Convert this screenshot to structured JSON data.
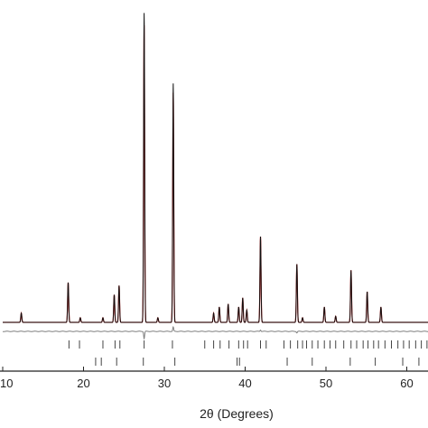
{
  "chart_data": {
    "type": "line",
    "title": "",
    "xlabel": "2θ (Degrees)",
    "ylabel": "",
    "xlim": [
      10,
      63
    ],
    "ylim": [
      -8,
      100
    ],
    "grid": false,
    "legend": "none",
    "x_ticks": [
      10,
      20,
      30,
      40,
      50,
      60
    ],
    "x_tick_labels": [
      "10",
      "20",
      "30",
      "40",
      "50",
      "60"
    ],
    "colors": {
      "observed": "#111111",
      "calculated": "#d62222",
      "difference": "#7f7f7f",
      "phase1_markers": "#444444",
      "phase2_markers": "#444444",
      "axis": "#222222"
    },
    "baseline": 2,
    "peaks": [
      {
        "x": 12.3,
        "h": 3
      },
      {
        "x": 18.1,
        "h": 13
      },
      {
        "x": 19.6,
        "h": 1.5
      },
      {
        "x": 22.4,
        "h": 1.5
      },
      {
        "x": 23.8,
        "h": 9
      },
      {
        "x": 24.4,
        "h": 12
      },
      {
        "x": 27.5,
        "h": 97
      },
      {
        "x": 29.2,
        "h": 1.5
      },
      {
        "x": 31.1,
        "h": 75
      },
      {
        "x": 36.1,
        "h": 3
      },
      {
        "x": 36.8,
        "h": 5
      },
      {
        "x": 37.9,
        "h": 6
      },
      {
        "x": 39.2,
        "h": 5
      },
      {
        "x": 39.7,
        "h": 8
      },
      {
        "x": 40.2,
        "h": 4
      },
      {
        "x": 41.9,
        "h": 28
      },
      {
        "x": 46.4,
        "h": 19
      },
      {
        "x": 47.1,
        "h": 1.5
      },
      {
        "x": 49.8,
        "h": 5
      },
      {
        "x": 51.2,
        "h": 2
      },
      {
        "x": 53.1,
        "h": 17
      },
      {
        "x": 55.1,
        "h": 10
      },
      {
        "x": 56.8,
        "h": 5
      }
    ],
    "observed_excess": [
      {
        "x": 27.5,
        "dh": 4
      },
      {
        "x": 31.1,
        "dh": 3
      }
    ],
    "difference_spikes": [
      {
        "x": 27.5,
        "d": -5
      },
      {
        "x": 31.1,
        "d": 3
      },
      {
        "x": 41.9,
        "d": 1
      },
      {
        "x": 46.4,
        "d": -1
      }
    ],
    "phase1_positions": [
      18.2,
      19.5,
      22.4,
      23.9,
      24.5,
      27.5,
      31.0,
      35.0,
      36.1,
      36.9,
      38.0,
      39.2,
      39.8,
      40.3,
      41.9,
      42.6,
      44.8,
      45.6,
      46.5,
      47.1,
      47.6,
      48.3,
      49.0,
      49.8,
      50.5,
      51.2,
      52.2,
      53.1,
      53.8,
      54.6,
      55.2,
      55.9,
      56.5,
      57.3,
      58.1,
      58.9,
      59.6,
      60.3,
      61.1,
      61.8,
      62.5
    ],
    "phase2_positions": [
      21.5,
      22.2,
      24.1,
      27.4,
      31.3,
      39.0,
      39.3,
      45.2,
      48.3,
      53.0,
      56.1,
      59.5,
      61.5
    ]
  }
}
